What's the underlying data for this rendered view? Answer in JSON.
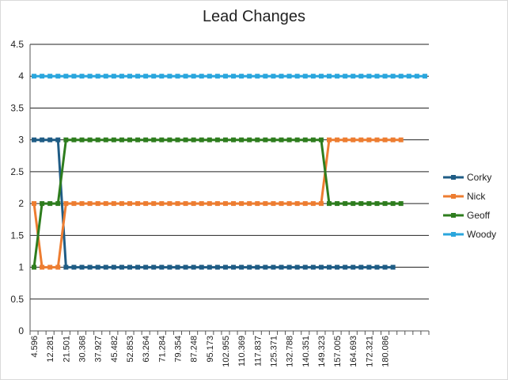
{
  "chart_data": {
    "type": "line",
    "title": "Lead Changes",
    "xlabel": "",
    "ylabel": "",
    "ylim": [
      0,
      4.5
    ],
    "y_ticks": [
      "0",
      "0.5",
      "1",
      "1.5",
      "2",
      "2.5",
      "3",
      "3.5",
      "4",
      "4.5"
    ],
    "x_tick_labels": [
      "4.596",
      "12.281",
      "21.501",
      "30.368",
      "37.927",
      "45.482",
      "52.853",
      "63.264",
      "71.284",
      "79.354",
      "87.248",
      "95.173",
      "102.955",
      "110.369",
      "117.837",
      "125.371",
      "132.788",
      "140.351",
      "149.323",
      "157.005",
      "164.693",
      "172.321",
      "180.086"
    ],
    "x_tick_every": 2,
    "num_categories": 50,
    "grid": true,
    "legend_position": "right",
    "series": [
      {
        "name": "Corky",
        "color": "#1f5c85",
        "segments": [
          [
            0,
            3
          ],
          [
            1,
            3
          ],
          [
            2,
            3
          ],
          [
            3,
            3
          ],
          [
            4,
            1
          ],
          [
            45,
            1
          ]
        ]
      },
      {
        "name": "Nick",
        "color": "#ed7d31",
        "segments": [
          [
            0,
            2
          ],
          [
            1,
            1
          ],
          [
            2,
            1
          ],
          [
            3,
            1
          ],
          [
            4,
            2
          ],
          [
            36,
            2
          ],
          [
            37,
            3
          ],
          [
            46,
            3
          ]
        ]
      },
      {
        "name": "Geoff",
        "color": "#2e7d1e",
        "segments": [
          [
            0,
            1
          ],
          [
            1,
            2
          ],
          [
            2,
            2
          ],
          [
            3,
            2
          ],
          [
            4,
            3
          ],
          [
            36,
            3
          ],
          [
            37,
            2
          ],
          [
            46,
            2
          ]
        ]
      },
      {
        "name": "Woody",
        "color": "#2aa6dd",
        "segments": [
          [
            0,
            4
          ],
          [
            49,
            4
          ]
        ]
      }
    ]
  }
}
